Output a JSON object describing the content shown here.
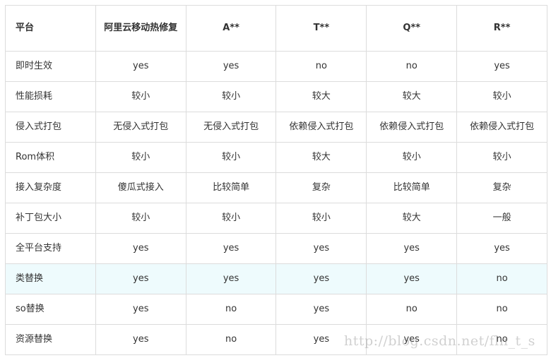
{
  "table": {
    "headers": [
      "平台",
      "阿里云移动热修复",
      "A**",
      "T**",
      "Q**",
      "R**"
    ],
    "highlight_color": "#eefbfd",
    "highlight_row": 7,
    "rows": [
      [
        "即时生效",
        "yes",
        "yes",
        "no",
        "no",
        "yes"
      ],
      [
        "性能损耗",
        "较小",
        "较小",
        "较大",
        "较大",
        "较小"
      ],
      [
        "侵入式打包",
        "无侵入式打包",
        "无侵入式打包",
        "依赖侵入式打包",
        "依赖侵入式打包",
        "依赖侵入式打包"
      ],
      [
        "Rom体积",
        "较小",
        "较小",
        "较大",
        "较小",
        "较小"
      ],
      [
        "接入复杂度",
        "傻瓜式接入",
        "比较简单",
        "复杂",
        "比较简单",
        "复杂"
      ],
      [
        "补丁包大小",
        "较小",
        "较小",
        "较小",
        "较大",
        "一般"
      ],
      [
        "全平台支持",
        "yes",
        "yes",
        "yes",
        "yes",
        "yes"
      ],
      [
        "类替换",
        "yes",
        "yes",
        "yes",
        "yes",
        "no"
      ],
      [
        "so替换",
        "yes",
        "no",
        "yes",
        "no",
        "no"
      ],
      [
        "资源替换",
        "yes",
        "no",
        "yes",
        "yes",
        "no"
      ]
    ]
  },
  "watermark": "http://blog.csdn.net/fln_t_s"
}
